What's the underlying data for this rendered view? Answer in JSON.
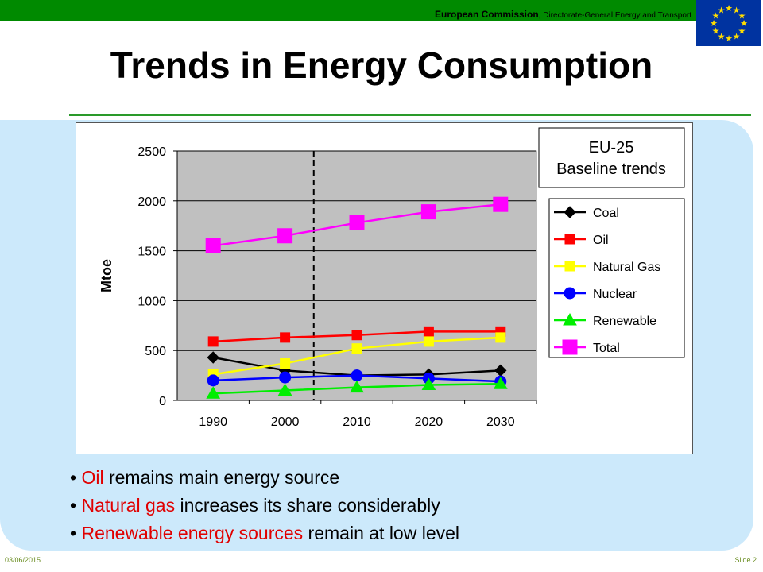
{
  "header": {
    "org": "European Commission",
    "dg": ", Directorate-General Energy and Transport"
  },
  "slide": {
    "title": "Trends in Energy Consumption",
    "date": "03/06/2015",
    "number": "Slide 2"
  },
  "chart_data": {
    "type": "line",
    "title": "",
    "ylabel": "Mtoe",
    "xlabel": "",
    "categories": [
      "1990",
      "2000",
      "2010",
      "2020",
      "2030"
    ],
    "ylim": [
      0,
      2500
    ],
    "yticks": [
      "0",
      "500",
      "1000",
      "1500",
      "2000",
      "2500"
    ],
    "grid": true,
    "reference_line_x": 2004,
    "annotation": [
      "EU-25",
      "Baseline trends"
    ],
    "legend_position": "right",
    "series": [
      {
        "name": "Coal",
        "values": [
          430,
          300,
          250,
          260,
          300
        ],
        "color": "#000000",
        "marker": "diamond"
      },
      {
        "name": "Oil",
        "values": [
          590,
          630,
          655,
          690,
          690
        ],
        "color": "#ff0000",
        "marker": "square"
      },
      {
        "name": "Natural Gas",
        "values": [
          260,
          370,
          520,
          590,
          630
        ],
        "color": "#ffff00",
        "marker": "square"
      },
      {
        "name": "Nuclear",
        "values": [
          200,
          230,
          250,
          220,
          190
        ],
        "color": "#0000ff",
        "marker": "circle"
      },
      {
        "name": "Renewable",
        "values": [
          70,
          100,
          130,
          155,
          165
        ],
        "color": "#00ee00",
        "marker": "triangle"
      },
      {
        "name": "Total",
        "values": [
          1550,
          1650,
          1780,
          1890,
          1965
        ],
        "color": "#ff00ff",
        "marker": "bigsquare"
      }
    ]
  },
  "bullets": [
    {
      "highlight": "Oil",
      "rest": " remains main energy source"
    },
    {
      "highlight": "Natural gas",
      "rest": " increases its share considerably"
    },
    {
      "highlight": "Renewable energy sources",
      "rest": " remain at low level"
    }
  ]
}
